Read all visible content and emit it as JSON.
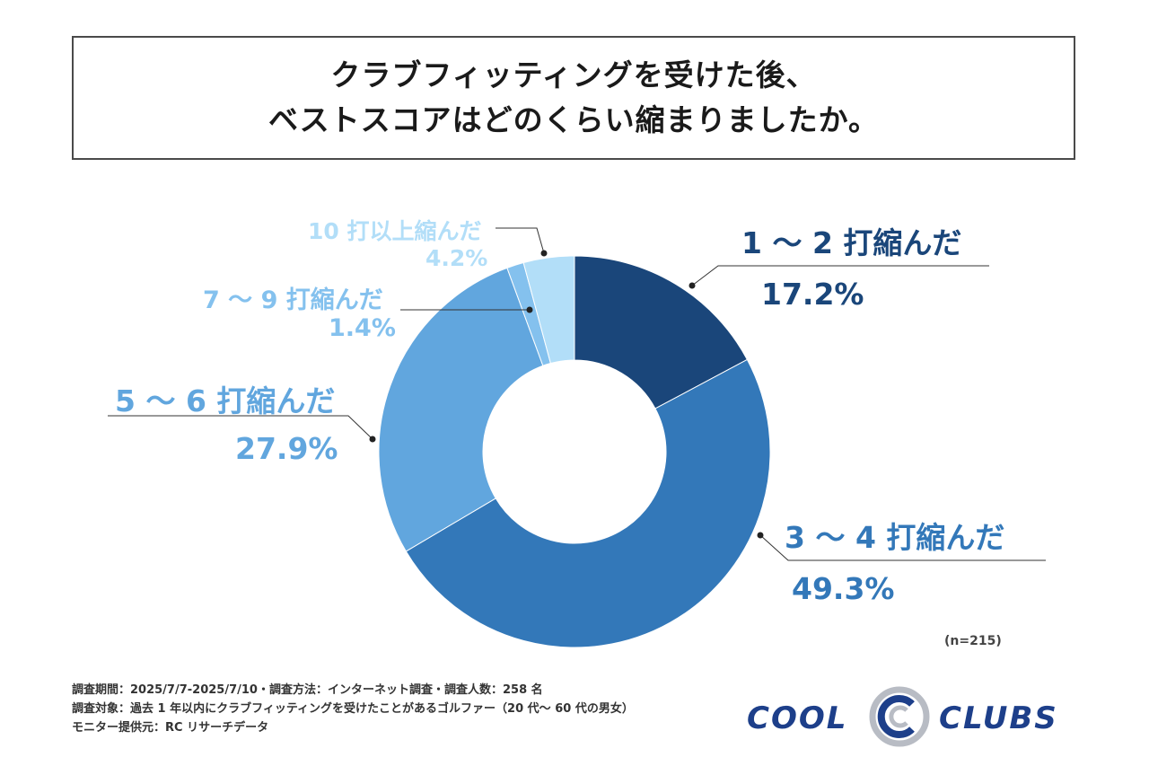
{
  "title": {
    "line1": "クラブフィッティングを受けた後、",
    "line2": "ベストスコアはどのくらい縮まりましたか。"
  },
  "chart_data": {
    "type": "pie",
    "variant": "donut",
    "title": "クラブフィッティングを受けた後、ベストスコアはどのくらい縮まりましたか。",
    "categories": [
      "1～2打縮んだ",
      "3～4打縮んだ",
      "5～6打縮んだ",
      "7～9打縮んだ",
      "10打以上縮んだ"
    ],
    "values": [
      17.2,
      49.3,
      27.9,
      1.4,
      4.2
    ],
    "colors": [
      "#1a467a",
      "#3378b9",
      "#61a6de",
      "#84c1ee",
      "#b2def8"
    ],
    "labels": [
      {
        "name": "1 ～ 2 打縮んだ",
        "pct": "17.2%"
      },
      {
        "name": "3 ～ 4 打縮んだ",
        "pct": "49.3%"
      },
      {
        "name": "5 ～ 6 打縮んだ",
        "pct": "27.9%"
      },
      {
        "name": "7 ～ 9 打縮んだ",
        "pct": "1.4%"
      },
      {
        "name": "10 打以上縮んだ",
        "pct": "4.2%"
      }
    ],
    "n_note": "(n=215)"
  },
  "footer": {
    "line1": "調査期間：2025/7/7-2025/7/10・調査方法：インターネット調査・調査人数：258 名",
    "line2": "調査対象：過去 1 年以内にクラブフィッティングを受けたことがあるゴルファー（20 代～ 60 代の男女）",
    "line3": "モニター提供元：RC リサーチデータ"
  },
  "logo": {
    "left": "COOL",
    "mark": "C",
    "right": "CLUBS",
    "color": "#1d3f8a"
  }
}
